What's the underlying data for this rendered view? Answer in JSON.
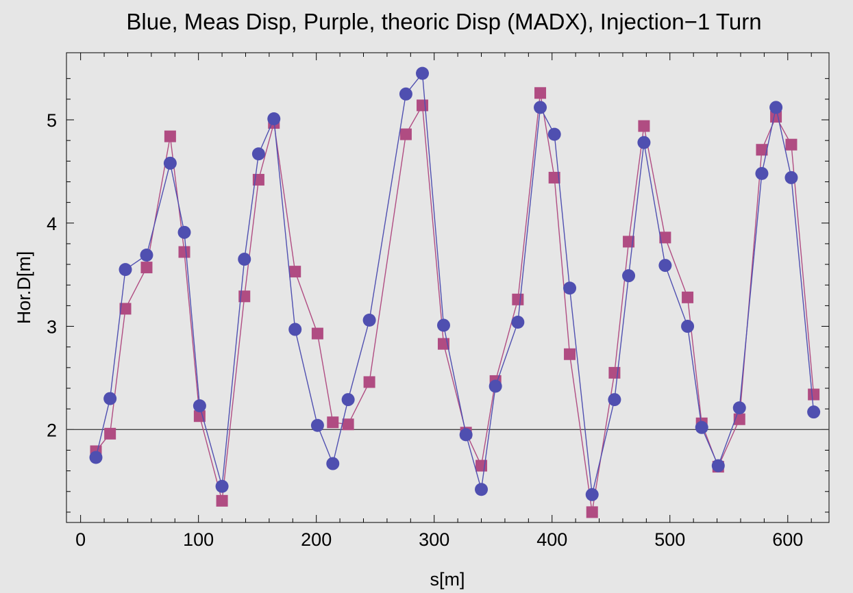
{
  "chart_data": {
    "type": "scatter",
    "title": "Blue, Meas Disp, Purple, theoric Disp (MADX), Injection−1 Turn",
    "xlabel": "s[m]",
    "ylabel": "Hor.D[m]",
    "xlim": [
      -12,
      635
    ],
    "ylim": [
      1.1,
      5.65
    ],
    "x_ticks": [
      "0",
      "100",
      "200",
      "300",
      "400",
      "500",
      "600"
    ],
    "y_ticks": [
      "2",
      "3",
      "4",
      "5"
    ],
    "reference_line_y": 2,
    "grid": false,
    "legend": "none",
    "colors": {
      "measured": "#4f4fb0",
      "theoretic": "#b04c82",
      "background": "#e6e6e6"
    },
    "series": [
      {
        "marker": "circle",
        "x": [
          13,
          25,
          38,
          56,
          76,
          88,
          101,
          120,
          139,
          151,
          164,
          182,
          201,
          214,
          227,
          245,
          276,
          290,
          308,
          327,
          340,
          352,
          371,
          390,
          402,
          415,
          434,
          453,
          465,
          478,
          496,
          515,
          527,
          541,
          559,
          578,
          590,
          603,
          622
        ],
        "y": [
          1.73,
          2.3,
          3.55,
          3.69,
          4.58,
          3.91,
          2.23,
          1.45,
          3.65,
          4.67,
          5.01,
          2.97,
          2.04,
          1.67,
          2.29,
          3.06,
          5.25,
          5.45,
          3.01,
          1.95,
          1.42,
          2.42,
          3.04,
          5.12,
          4.86,
          3.37,
          1.37,
          2.29,
          3.49,
          4.78,
          3.59,
          3.0,
          2.02,
          1.65,
          2.21,
          4.48,
          5.12,
          4.44,
          2.17
        ]
      },
      {
        "marker": "square",
        "x": [
          13,
          25,
          38,
          56,
          76,
          88,
          101,
          120,
          139,
          151,
          164,
          182,
          201,
          214,
          227,
          245,
          276,
          290,
          308,
          327,
          340,
          352,
          371,
          390,
          402,
          415,
          434,
          453,
          465,
          478,
          496,
          515,
          527,
          541,
          559,
          578,
          590,
          603,
          622
        ],
        "y": [
          1.79,
          1.96,
          3.17,
          3.57,
          4.84,
          3.72,
          2.13,
          1.31,
          3.29,
          4.42,
          4.97,
          3.53,
          2.93,
          2.07,
          2.05,
          2.46,
          4.86,
          5.14,
          2.83,
          1.97,
          1.65,
          2.47,
          3.26,
          5.26,
          4.44,
          2.73,
          1.2,
          2.55,
          3.82,
          4.94,
          3.86,
          3.28,
          2.06,
          1.64,
          2.1,
          4.71,
          5.03,
          4.76,
          2.34
        ]
      }
    ]
  }
}
